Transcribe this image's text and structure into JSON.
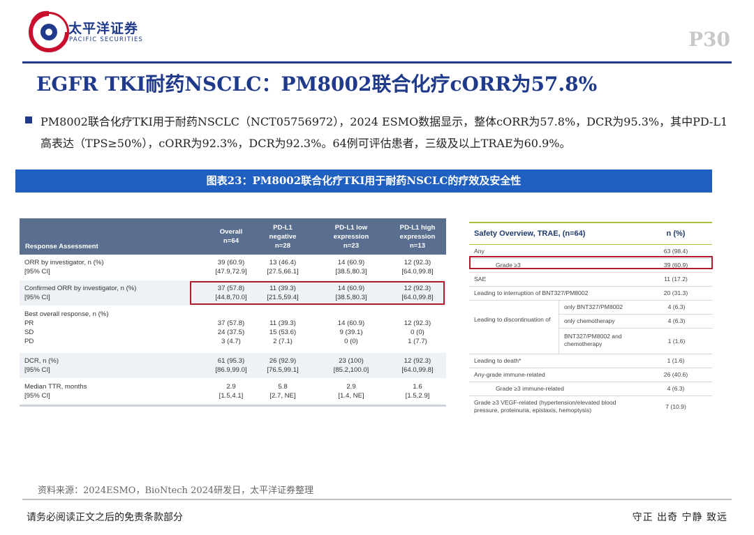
{
  "header": {
    "logo_cn": "太平洋证券",
    "logo_en": "PACIFIC SECURITIES",
    "page": "P30",
    "brand_color": "#1f3a8a",
    "accent_red": "#c8102e"
  },
  "title": "EGFR TKI耐药NSCLC：PM8002联合化疗cORR为57.8%",
  "paragraph": "PM8002联合化疗TKI用于耐药NSCLC（NCT05756972），2024 ESMO数据显示，整体cORR为57.8%，DCR为95.3%，其中PD-L1高表达（TPS≥50%），cORR为92.3%，DCR为92.3%。64例可评估患者，三级及以上TRAE为60.9%。",
  "figure_title": "图表23：PM8002联合化疗TKI用于耐药NSCLC的疗效及安全性",
  "response_table": {
    "headers": [
      "Response Assessment",
      "Overall\nn=64",
      "PD-L1\nnegative\nn=28",
      "PD-L1 low\nexpression\nn=23",
      "PD-L1 high\nexpression\nn=13"
    ],
    "rows": [
      {
        "label": "ORR by investigator, n (%)\n[95% CI]",
        "values": [
          "39 (60.9)\n[47.9,72.9]",
          "13 (46.4)\n[27.5,66.1]",
          "14 (60.9)\n[38.5,80.3]",
          "12 (92.3)\n[64.0,99.8]"
        ]
      },
      {
        "label": "Confirmed ORR by investigator, n (%)\n[95% CI]",
        "values": [
          "37 (57.8)\n[44.8,70.0]",
          "11 (39.3)\n[21.5,59.4]",
          "14 (60.9)\n[38.5,80.3]",
          "12 (92.3)\n[64.0,99.8]"
        ]
      },
      {
        "label": "Best overall response, n (%)\n    PR\n    SD\n    PD",
        "values": [
          "\n37 (57.8)\n24 (37.5)\n3 (4.7)",
          "\n11 (39.3)\n15 (53.6)\n2 (7.1)",
          "\n14 (60.9)\n9 (39.1)\n0 (0)",
          "\n12 (92.3)\n0 (0)\n1 (7.7)"
        ]
      },
      {
        "label": "DCR, n (%)\n[95% CI]",
        "values": [
          "61 (95.3)\n[86.9,99.0]",
          "26 (92.9)\n[76.5,99.1]",
          "23 (100)\n[85.2,100.0]",
          "12 (92.3)\n[64.0,99.8]"
        ]
      },
      {
        "label": "Median TTR, months\n[95% CI]",
        "values": [
          "2.9\n[1.5,4.1]",
          "5.8\n[2.7, NE]",
          "2.9\n[1.4, NE]",
          "1.6\n[1.5,2.9]"
        ]
      }
    ]
  },
  "safety_table": {
    "title": "Safety Overview, TRAE,  (n=64)",
    "col": "n (%)",
    "rows_top": [
      {
        "label": "Any",
        "value": "63 (98.4)"
      },
      {
        "label": "Grade ≥3",
        "value": "39 (60.9)"
      },
      {
        "label": "SAE",
        "value": "11 (17.2)"
      },
      {
        "label": "Leading to interruption of BNT327/PM8002",
        "value": "20 (31.3)"
      }
    ],
    "group": {
      "label": "Leading to discontinuation of",
      "items": [
        {
          "label": "only BNT327/PM8002",
          "value": "4 (6.3)"
        },
        {
          "label": "only chemotherapy",
          "value": "4 (6.3)"
        },
        {
          "label": "BNT327/PM8002 and chemotherapy",
          "value": "1 (1.6)"
        }
      ]
    },
    "rows_bottom": [
      {
        "label": "Leading to death*",
        "value": "1 (1.6)"
      },
      {
        "label": "Any-grade immune-related",
        "value": "26 (40.6)"
      },
      {
        "label": "Grade ≥3 immune-related",
        "value": "4 (6.3)"
      },
      {
        "label": "Grade ≥3 VEGF-related (hypertension/elevated blood pressure, proteinuria, epistaxis, hemoptysis)",
        "value": "7 (10.9)"
      }
    ]
  },
  "source": "资料来源：2024ESMO，BioNtech 2024研发日，太平洋证券整理",
  "footer": {
    "disclaimer": "请务必阅读正文之后的免责条款部分",
    "motto": "守正 出奇 宁静 致远"
  }
}
